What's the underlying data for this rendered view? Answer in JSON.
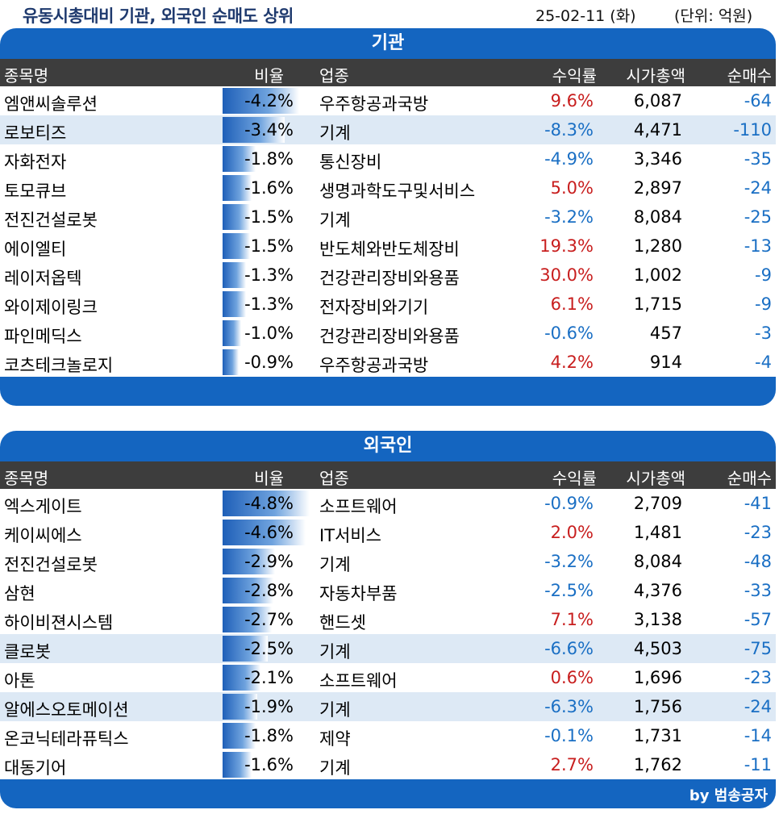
{
  "header": {
    "title": "유동시총대비 기관, 외국인 순매도 상위",
    "date": "25-02-11 (화)",
    "unit": "(단위: 억원)"
  },
  "columns": {
    "name": "종목명",
    "ratio": "비율",
    "industry": "업종",
    "return": "수익률",
    "market_cap": "시가총액",
    "net_sell": "순매수"
  },
  "institution": {
    "title": "기관",
    "rows": [
      {
        "name": "엠앤씨솔루션",
        "ratio": "-4.2%",
        "ratio_value": -4.2,
        "industry": "우주항공과국방",
        "return": "9.6%",
        "market_cap": "6,087",
        "net": "-64",
        "highlight": false
      },
      {
        "name": "로보티즈",
        "ratio": "-3.4%",
        "ratio_value": -3.4,
        "industry": "기계",
        "return": "-8.3%",
        "market_cap": "4,471",
        "net": "-110",
        "highlight": true
      },
      {
        "name": "자화전자",
        "ratio": "-1.8%",
        "ratio_value": -1.8,
        "industry": "통신장비",
        "return": "-4.9%",
        "market_cap": "3,346",
        "net": "-35",
        "highlight": false
      },
      {
        "name": "토모큐브",
        "ratio": "-1.6%",
        "ratio_value": -1.6,
        "industry": "생명과학도구및서비스",
        "return": "5.0%",
        "market_cap": "2,897",
        "net": "-24",
        "highlight": false
      },
      {
        "name": "전진건설로봇",
        "ratio": "-1.5%",
        "ratio_value": -1.5,
        "industry": "기계",
        "return": "-3.2%",
        "market_cap": "8,084",
        "net": "-25",
        "highlight": false
      },
      {
        "name": "에이엘티",
        "ratio": "-1.5%",
        "ratio_value": -1.5,
        "industry": "반도체와반도체장비",
        "return": "19.3%",
        "market_cap": "1,280",
        "net": "-13",
        "highlight": false
      },
      {
        "name": "레이저옵텍",
        "ratio": "-1.3%",
        "ratio_value": -1.3,
        "industry": "건강관리장비와용품",
        "return": "30.0%",
        "market_cap": "1,002",
        "net": "-9",
        "highlight": false
      },
      {
        "name": "와이제이링크",
        "ratio": "-1.3%",
        "ratio_value": -1.3,
        "industry": "전자장비와기기",
        "return": "6.1%",
        "market_cap": "1,715",
        "net": "-9",
        "highlight": false
      },
      {
        "name": "파인메딕스",
        "ratio": "-1.0%",
        "ratio_value": -1.0,
        "industry": "건강관리장비와용품",
        "return": "-0.6%",
        "market_cap": "457",
        "net": "-3",
        "highlight": false
      },
      {
        "name": "코츠테크놀로지",
        "ratio": "-0.9%",
        "ratio_value": -0.9,
        "industry": "우주항공과국방",
        "return": "4.2%",
        "market_cap": "914",
        "net": "-4",
        "highlight": false
      }
    ]
  },
  "foreigner": {
    "title": "외국인",
    "rows": [
      {
        "name": "엑스게이트",
        "ratio": "-4.8%",
        "ratio_value": -4.8,
        "industry": "소프트웨어",
        "return": "-0.9%",
        "market_cap": "2,709",
        "net": "-41",
        "highlight": false
      },
      {
        "name": "케이씨에스",
        "ratio": "-4.6%",
        "ratio_value": -4.6,
        "industry": "IT서비스",
        "return": "2.0%",
        "market_cap": "1,481",
        "net": "-23",
        "highlight": false
      },
      {
        "name": "전진건설로봇",
        "ratio": "-2.9%",
        "ratio_value": -2.9,
        "industry": "기계",
        "return": "-3.2%",
        "market_cap": "8,084",
        "net": "-48",
        "highlight": false
      },
      {
        "name": "삼현",
        "ratio": "-2.8%",
        "ratio_value": -2.8,
        "industry": "자동차부품",
        "return": "-2.5%",
        "market_cap": "4,376",
        "net": "-33",
        "highlight": false
      },
      {
        "name": "하이비젼시스템",
        "ratio": "-2.7%",
        "ratio_value": -2.7,
        "industry": "핸드셋",
        "return": "7.1%",
        "market_cap": "3,138",
        "net": "-57",
        "highlight": false
      },
      {
        "name": "클로봇",
        "ratio": "-2.5%",
        "ratio_value": -2.5,
        "industry": "기계",
        "return": "-6.6%",
        "market_cap": "4,503",
        "net": "-75",
        "highlight": true
      },
      {
        "name": "아톤",
        "ratio": "-2.1%",
        "ratio_value": -2.1,
        "industry": "소프트웨어",
        "return": "0.6%",
        "market_cap": "1,696",
        "net": "-23",
        "highlight": false
      },
      {
        "name": "알에스오토메이션",
        "ratio": "-1.9%",
        "ratio_value": -1.9,
        "industry": "기계",
        "return": "-6.3%",
        "market_cap": "1,756",
        "net": "-24",
        "highlight": true
      },
      {
        "name": "온코닉테라퓨틱스",
        "ratio": "-1.8%",
        "ratio_value": -1.8,
        "industry": "제약",
        "return": "-0.1%",
        "market_cap": "1,731",
        "net": "-14",
        "highlight": false
      },
      {
        "name": "대동기어",
        "ratio": "-1.6%",
        "ratio_value": -1.6,
        "industry": "기계",
        "return": "2.7%",
        "market_cap": "1,762",
        "net": "-11",
        "highlight": false
      }
    ]
  },
  "footer": {
    "credit": "by 범송공자"
  },
  "colors": {
    "panel": "#1465c0",
    "header": "#3d3d3d",
    "positive": "#c81e1e",
    "negative": "#1a6fc4",
    "highlight": "#dde9f5"
  }
}
